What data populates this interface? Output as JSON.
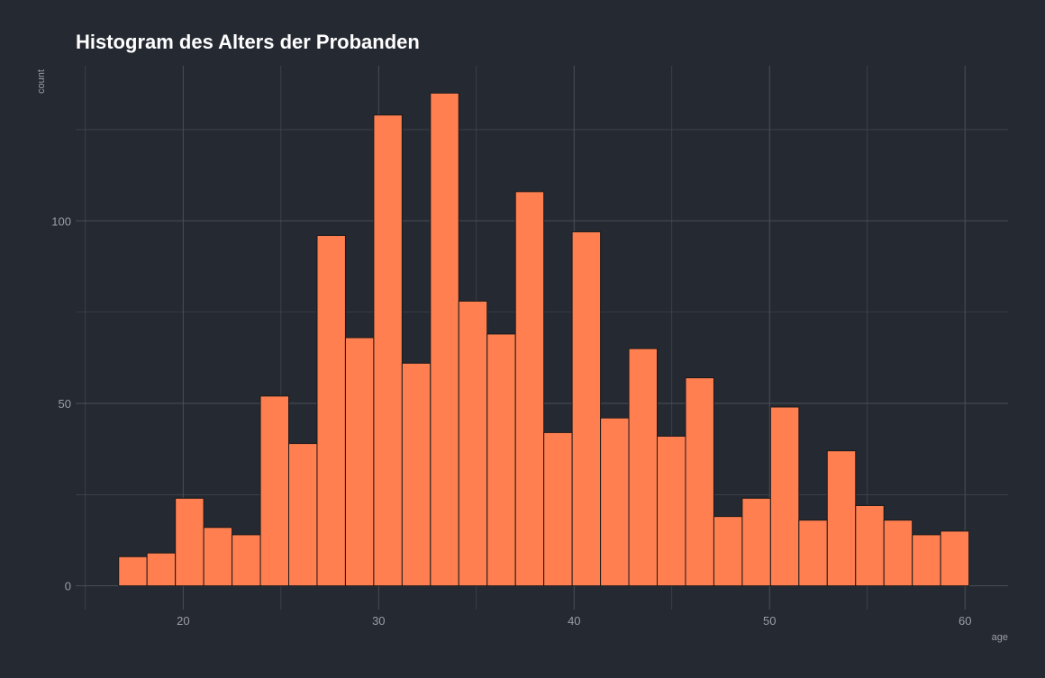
{
  "chart_data": {
    "type": "bar",
    "title": "Histogram des Alters der Probanden",
    "xlabel": "age",
    "ylabel": "count",
    "bin_width": 1.45,
    "bins_start": 16.7,
    "values": [
      8,
      9,
      24,
      16,
      14,
      52,
      39,
      96,
      68,
      129,
      61,
      135,
      78,
      69,
      108,
      42,
      97,
      46,
      65,
      41,
      57,
      19,
      24,
      49,
      18,
      37,
      22,
      18,
      14,
      15
    ],
    "xlim": [
      14.5,
      62.2
    ],
    "ylim": [
      -6.5,
      142.5
    ],
    "x_ticks": [
      20,
      30,
      40,
      50,
      60
    ],
    "y_ticks": [
      0,
      50,
      100
    ],
    "x_minor_ticks": [
      15,
      25,
      35,
      45,
      55
    ],
    "y_minor_ticks": [
      25,
      75,
      125
    ],
    "grid": true,
    "colors": {
      "background": "#252932",
      "bar_fill": "#ff7f50",
      "bar_stroke": "#1a1a1a",
      "grid": "#4a4e57",
      "text": "#9a9da5",
      "title": "#ffffff"
    }
  }
}
